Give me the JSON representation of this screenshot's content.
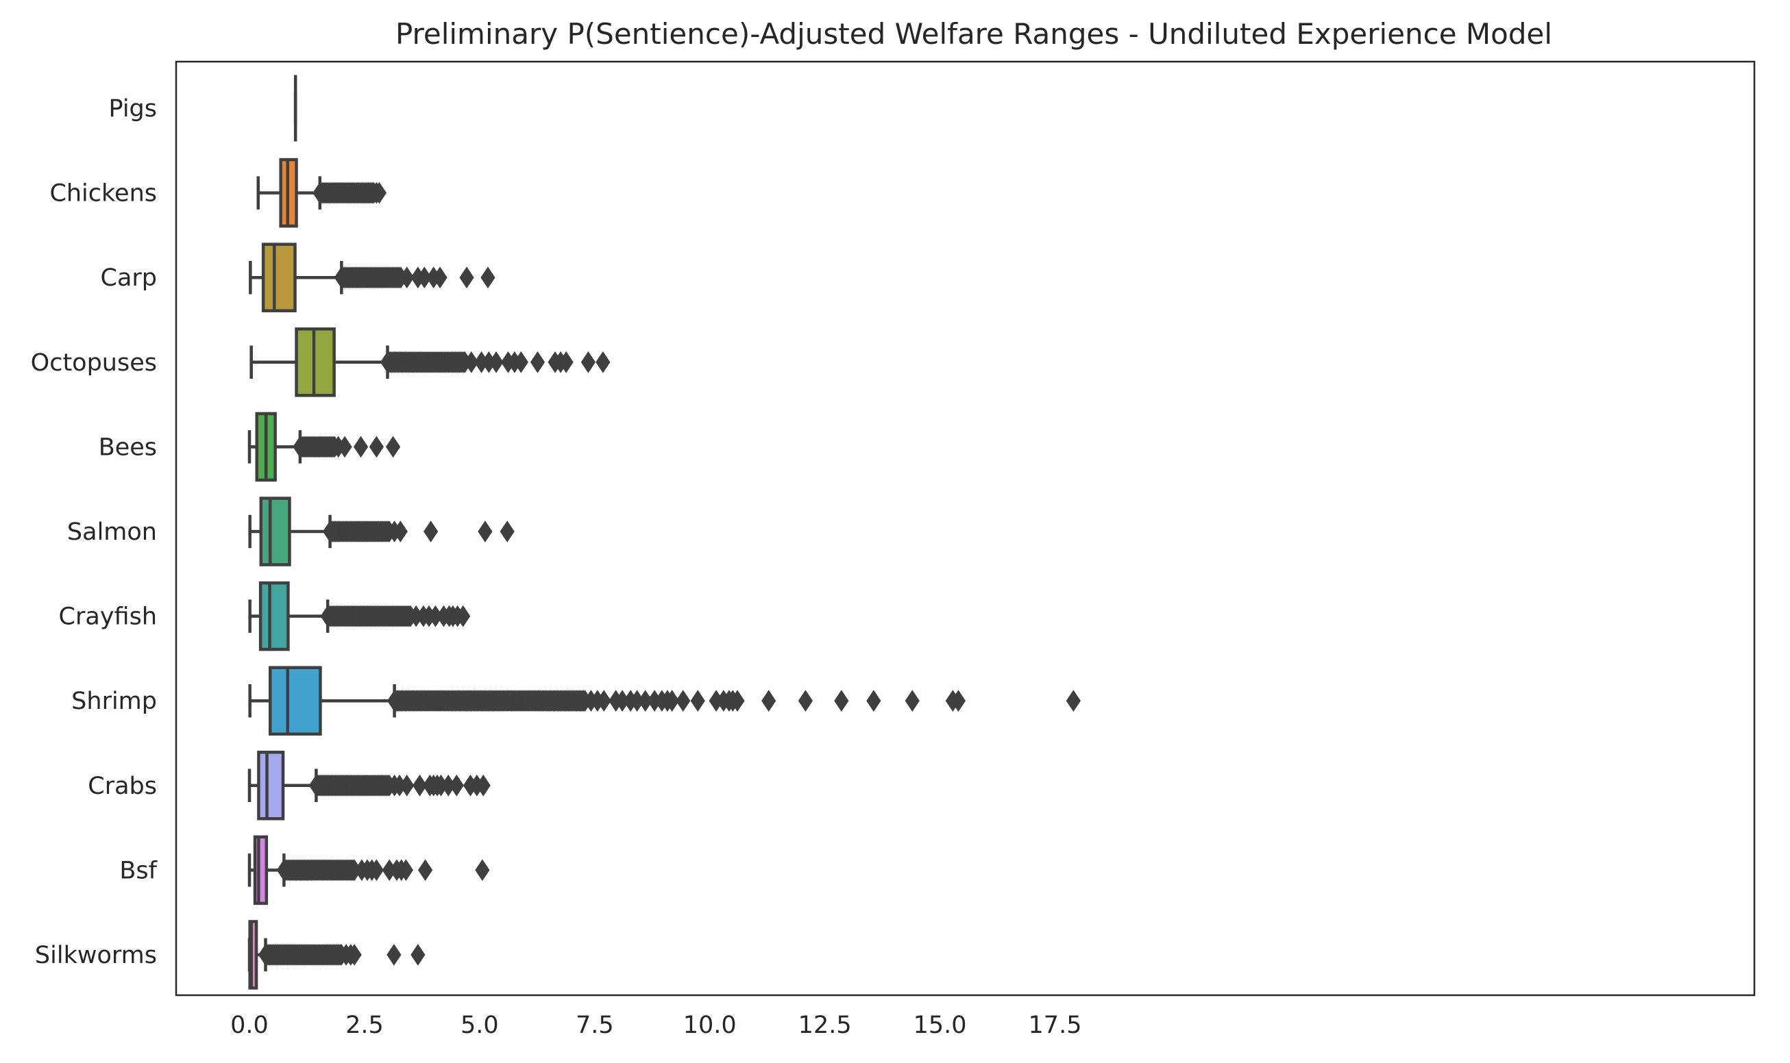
{
  "chart_data": {
    "type": "boxplot",
    "orientation": "horizontal",
    "title": "Preliminary P(Sentience)-Adjusted Welfare Ranges - Undiluted Experience Model",
    "xlabel": "",
    "ylabel": "",
    "xlim": [
      -0.9,
      18.6
    ],
    "xticks": [
      0.0,
      2.5,
      5.0,
      7.5,
      10.0,
      12.5,
      15.0,
      17.5
    ],
    "xtick_labels": [
      "0.0",
      "2.5",
      "5.0",
      "7.5",
      "10.0",
      "12.5",
      "15.0",
      "17.5"
    ],
    "grid": false,
    "legend": "none",
    "categories": [
      "Pigs",
      "Chickens",
      "Carp",
      "Octopuses",
      "Bees",
      "Salmon",
      "Crayfish",
      "Shrimp",
      "Crabs",
      "Bsf",
      "Silkworms"
    ],
    "series": [
      {
        "name": "Pigs",
        "color": "#ffffff",
        "whisker_low": 1.0,
        "q1": 1.0,
        "median": 1.0,
        "q3": 1.0,
        "whisker_high": 1.0,
        "outliers_dense": [],
        "outliers": []
      },
      {
        "name": "Chickens",
        "color": "#e1863b",
        "whisker_low": 0.19,
        "q1": 0.68,
        "median": 0.83,
        "q3": 1.02,
        "whisker_high": 1.53,
        "outliers_dense": [
          1.53,
          2.7
        ],
        "outliers": [
          2.76,
          2.82
        ]
      },
      {
        "name": "Carp",
        "color": "#b89a3c",
        "whisker_low": 0.02,
        "q1": 0.3,
        "median": 0.54,
        "q3": 0.99,
        "whisker_high": 2.0,
        "outliers_dense": [
          2.0,
          3.3
        ],
        "outliers": [
          3.42,
          3.66,
          3.8,
          4.0,
          4.14,
          4.72,
          5.18
        ]
      },
      {
        "name": "Octopuses",
        "color": "#92a83f",
        "whisker_low": 0.04,
        "q1": 1.02,
        "median": 1.4,
        "q3": 1.84,
        "whisker_high": 3.0,
        "outliers_dense": [
          3.0,
          4.7
        ],
        "outliers": [
          4.82,
          5.04,
          5.2,
          5.36,
          5.62,
          5.76,
          5.9,
          6.26,
          6.64,
          6.76,
          6.88,
          7.36,
          7.68
        ]
      },
      {
        "name": "Bees",
        "color": "#4dad4f",
        "whisker_low": 0.0,
        "q1": 0.16,
        "median": 0.36,
        "q3": 0.56,
        "whisker_high": 1.1,
        "outliers_dense": [
          1.1,
          1.85
        ],
        "outliers": [
          1.93,
          2.07,
          2.42,
          2.76,
          3.12
        ]
      },
      {
        "name": "Salmon",
        "color": "#47a67d",
        "whisker_low": 0.01,
        "q1": 0.25,
        "median": 0.45,
        "q3": 0.87,
        "whisker_high": 1.75,
        "outliers_dense": [
          1.75,
          3.05
        ],
        "outliers": [
          3.15,
          3.28,
          3.94,
          5.12,
          5.6
        ]
      },
      {
        "name": "Crayfish",
        "color": "#44a4a0",
        "whisker_low": 0.01,
        "q1": 0.24,
        "median": 0.44,
        "q3": 0.84,
        "whisker_high": 1.7,
        "outliers_dense": [
          1.7,
          3.5
        ],
        "outliers": [
          3.62,
          3.78,
          3.9,
          4.04,
          4.22,
          4.34,
          4.42,
          4.52,
          4.64
        ]
      },
      {
        "name": "Shrimp",
        "color": "#41a2cf",
        "whisker_low": 0.01,
        "q1": 0.45,
        "median": 0.83,
        "q3": 1.54,
        "whisker_high": 3.15,
        "outliers_dense": [
          3.15,
          7.3
        ],
        "outliers": [
          7.42,
          7.56,
          7.7,
          7.96,
          8.1,
          8.28,
          8.42,
          8.6,
          8.8,
          8.96,
          9.08,
          9.18,
          9.42,
          9.74,
          10.14,
          10.3,
          10.42,
          10.5,
          10.6,
          11.28,
          12.08,
          12.86,
          13.56,
          14.4,
          15.28,
          15.4,
          17.9
        ]
      },
      {
        "name": "Crabs",
        "color": "#a3a9ec",
        "whisker_low": 0.0,
        "q1": 0.2,
        "median": 0.38,
        "q3": 0.73,
        "whisker_high": 1.45,
        "outliers_dense": [
          1.45,
          3.05
        ],
        "outliers": [
          3.15,
          3.26,
          3.42,
          3.7,
          3.92,
          4.0,
          4.08,
          4.16,
          4.32,
          4.5,
          4.8,
          4.94,
          5.08
        ]
      },
      {
        "name": "Bsf",
        "color": "#d285e0",
        "whisker_low": 0.0,
        "q1": 0.12,
        "median": 0.2,
        "q3": 0.37,
        "whisker_high": 0.75,
        "outliers_dense": [
          0.75,
          2.3
        ],
        "outliers": [
          2.44,
          2.56,
          2.66,
          2.76,
          3.04,
          3.2,
          3.3,
          3.4,
          3.82,
          5.06
        ]
      },
      {
        "name": "Silkworms",
        "color": "#e283c3",
        "whisker_low": 0.0,
        "q1": 0.01,
        "median": 0.04,
        "q3": 0.15,
        "whisker_high": 0.35,
        "outliers_dense": [
          0.35,
          2.0
        ],
        "outliers": [
          2.1,
          2.2,
          2.28,
          3.14,
          3.66
        ]
      }
    ]
  }
}
